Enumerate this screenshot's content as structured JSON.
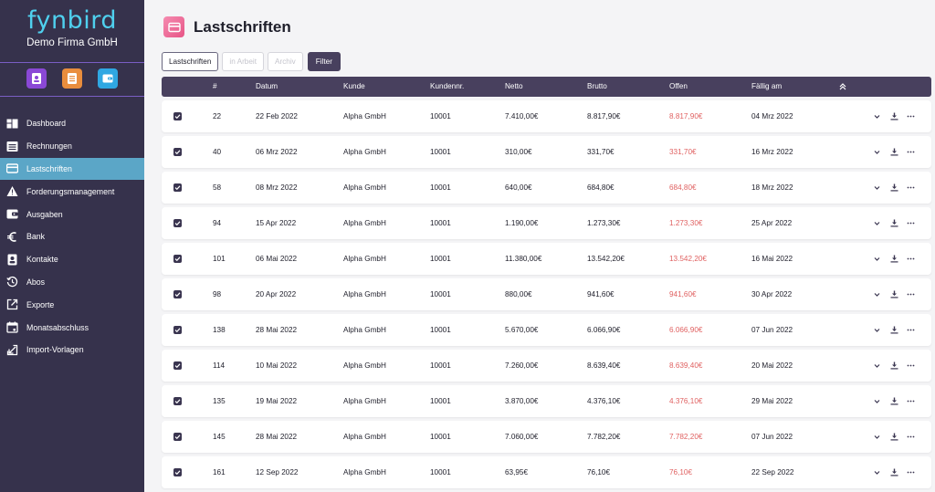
{
  "brand": {
    "logo": "fynbird",
    "company": "Demo Firma GmbH"
  },
  "quick_actions": [
    {
      "icon": "contact-card-icon",
      "color": "#8a48d6"
    },
    {
      "icon": "document-icon",
      "color": "#e98d3d"
    },
    {
      "icon": "wallet-icon",
      "color": "#2fa7e2"
    }
  ],
  "nav": [
    {
      "label": "Dashboard",
      "icon": "dashboard-icon"
    },
    {
      "label": "Rechnungen",
      "icon": "invoice-icon"
    },
    {
      "label": "Lastschriften",
      "icon": "card-icon",
      "active": true
    },
    {
      "label": "Forderungsmanagement",
      "icon": "warning-icon"
    },
    {
      "label": "Ausgaben",
      "icon": "wallet-icon"
    },
    {
      "label": "Bank",
      "icon": "euro-icon"
    },
    {
      "label": "Kontakte",
      "icon": "contact-icon"
    },
    {
      "label": "Abos",
      "icon": "history-icon"
    },
    {
      "label": "Exporte",
      "icon": "export-icon"
    },
    {
      "label": "Monatsabschluss",
      "icon": "calendar-icon"
    },
    {
      "label": "Import-Vorlagen",
      "icon": "import-icon"
    }
  ],
  "page": {
    "title": "Lastschriften"
  },
  "tabs": [
    {
      "label": "Lastschriften",
      "active": true
    },
    {
      "label": "in Arbeit",
      "active": false
    },
    {
      "label": "Archiv",
      "active": false
    }
  ],
  "filter_label": "Filter",
  "columns": {
    "nr": "#",
    "datum": "Datum",
    "kunde": "Kunde",
    "kundennr": "Kundennr.",
    "netto": "Netto",
    "brutto": "Brutto",
    "offen": "Offen",
    "faellig": "Fällig am"
  },
  "accent": {
    "sidebar": "#36324c",
    "header": "#48405e",
    "active": "#5ba6c7",
    "offen": "#e06262"
  },
  "rows": [
    {
      "nr": "22",
      "datum": "22 Feb 2022",
      "kunde": "Alpha GmbH",
      "kundennr": "10001",
      "netto": "7.410,00€",
      "brutto": "8.817,90€",
      "offen": "8.817,90€",
      "faellig": "04 Mrz 2022"
    },
    {
      "nr": "40",
      "datum": "06 Mrz 2022",
      "kunde": "Alpha GmbH",
      "kundennr": "10001",
      "netto": "310,00€",
      "brutto": "331,70€",
      "offen": "331,70€",
      "faellig": "16 Mrz 2022"
    },
    {
      "nr": "58",
      "datum": "08 Mrz 2022",
      "kunde": "Alpha GmbH",
      "kundennr": "10001",
      "netto": "640,00€",
      "brutto": "684,80€",
      "offen": "684,80€",
      "faellig": "18 Mrz 2022"
    },
    {
      "nr": "94",
      "datum": "15 Apr 2022",
      "kunde": "Alpha GmbH",
      "kundennr": "10001",
      "netto": "1.190,00€",
      "brutto": "1.273,30€",
      "offen": "1.273,30€",
      "faellig": "25 Apr 2022"
    },
    {
      "nr": "101",
      "datum": "06 Mai 2022",
      "kunde": "Alpha GmbH",
      "kundennr": "10001",
      "netto": "11.380,00€",
      "brutto": "13.542,20€",
      "offen": "13.542,20€",
      "faellig": "16 Mai 2022"
    },
    {
      "nr": "98",
      "datum": "20 Apr 2022",
      "kunde": "Alpha GmbH",
      "kundennr": "10001",
      "netto": "880,00€",
      "brutto": "941,60€",
      "offen": "941,60€",
      "faellig": "30 Apr 2022"
    },
    {
      "nr": "138",
      "datum": "28 Mai 2022",
      "kunde": "Alpha GmbH",
      "kundennr": "10001",
      "netto": "5.670,00€",
      "brutto": "6.066,90€",
      "offen": "6.066,90€",
      "faellig": "07 Jun 2022"
    },
    {
      "nr": "114",
      "datum": "10 Mai 2022",
      "kunde": "Alpha GmbH",
      "kundennr": "10001",
      "netto": "7.260,00€",
      "brutto": "8.639,40€",
      "offen": "8.639,40€",
      "faellig": "20 Mai 2022"
    },
    {
      "nr": "135",
      "datum": "19 Mai 2022",
      "kunde": "Alpha GmbH",
      "kundennr": "10001",
      "netto": "3.870,00€",
      "brutto": "4.376,10€",
      "offen": "4.376,10€",
      "faellig": "29 Mai 2022"
    },
    {
      "nr": "145",
      "datum": "28 Mai 2022",
      "kunde": "Alpha GmbH",
      "kundennr": "10001",
      "netto": "7.060,00€",
      "brutto": "7.782,20€",
      "offen": "7.782,20€",
      "faellig": "07 Jun 2022"
    },
    {
      "nr": "161",
      "datum": "12 Sep 2022",
      "kunde": "Alpha GmbH",
      "kundennr": "10001",
      "netto": "63,95€",
      "brutto": "76,10€",
      "offen": "76,10€",
      "faellig": "22 Sep 2022"
    }
  ]
}
